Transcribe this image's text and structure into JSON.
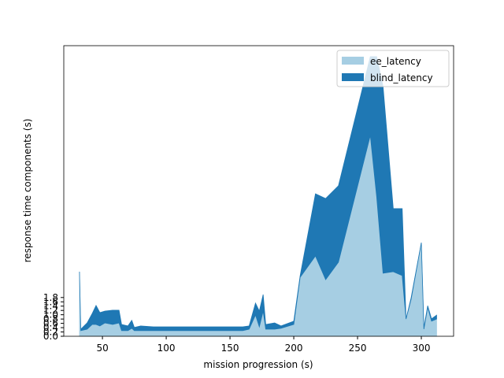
{
  "chart_data": {
    "type": "stacked_area",
    "x_label": "mission progression (s)",
    "y_label": "response time components (s)",
    "x": [
      32,
      33,
      38,
      42,
      45,
      48,
      52,
      58,
      63,
      65,
      70,
      73,
      75,
      80,
      90,
      100,
      120,
      140,
      160,
      165,
      170,
      173,
      176,
      178,
      185,
      190,
      200,
      205,
      217,
      225,
      235,
      260,
      265,
      270,
      278,
      285,
      288,
      292,
      300,
      302,
      305,
      308,
      312
    ],
    "series": [
      {
        "name": "ee_latency",
        "color": "#a6cee3",
        "values": [
          3.0,
          0.26,
          0.33,
          0.55,
          0.55,
          0.48,
          0.62,
          0.55,
          0.62,
          0.26,
          0.26,
          0.37,
          0.26,
          0.26,
          0.26,
          0.26,
          0.26,
          0.26,
          0.26,
          0.33,
          0.99,
          0.44,
          1.17,
          0.33,
          0.33,
          0.37,
          0.55,
          2.74,
          3.73,
          2.63,
          3.44,
          9.33,
          6.48,
          2.93,
          3.0,
          2.82,
          0.8,
          1.72,
          4.35,
          0.33,
          1.35,
          0.7,
          0.8
        ]
      },
      {
        "name": "blind_latency",
        "color": "#1f78b4",
        "values": [
          0,
          0.07,
          0.29,
          0.51,
          0.88,
          0.62,
          0.55,
          0.66,
          0.59,
          0.29,
          0.22,
          0.37,
          0.15,
          0.22,
          0.18,
          0.18,
          0.18,
          0.18,
          0.18,
          0.15,
          0.55,
          0.73,
          0.77,
          0.22,
          0.29,
          0.11,
          0.15,
          0.07,
          2.89,
          3.77,
          3.55,
          3.66,
          6.51,
          8.67,
          2.93,
          3.11,
          0,
          0.07,
          0,
          0.07,
          0.07,
          0.11,
          0.18
        ]
      }
    ],
    "xlim": [
      19.7,
      325.3
    ],
    "xticks": [
      50,
      100,
      150,
      200,
      250,
      300
    ],
    "ylim": [
      0,
      13.5
    ],
    "yticks": [
      {
        "value": 0,
        "label": "0.0"
      },
      {
        "value": 0.2,
        "label": "0.2"
      },
      {
        "value": 0.4,
        "label": "0.4"
      },
      {
        "value": 0.6,
        "label": "0.6"
      },
      {
        "value": 0.8,
        "label": "0.8"
      },
      {
        "value": 1.0,
        "label": "1.0"
      },
      {
        "value": 1.2,
        "label": "1.2"
      },
      {
        "value": 1.4,
        "label": "1.4"
      },
      {
        "value": 1.6,
        "label": "1.6"
      },
      {
        "value": 1.8,
        "label": "1.8"
      }
    ],
    "legend": "upper right"
  }
}
